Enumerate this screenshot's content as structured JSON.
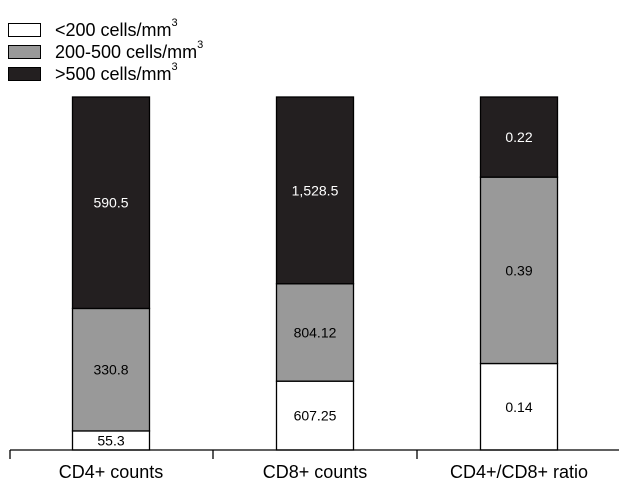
{
  "chart_data": {
    "type": "bar",
    "stacked": true,
    "normalized_to_equal_height": true,
    "categories": [
      "CD4+ counts",
      "CD8+ counts",
      "CD4+/CD8+ ratio"
    ],
    "series": [
      {
        "name": "<200 cells/mm",
        "name_superscript": "3",
        "color": "#ffffff",
        "labels": [
          "55.3",
          "607.25",
          "0.14"
        ],
        "proportions": [
          0.054,
          0.195,
          0.245
        ]
      },
      {
        "name": "200-500 cells/mm",
        "name_superscript": "3",
        "color": "#999999",
        "labels": [
          "330.8",
          "804.12",
          "0.39"
        ],
        "proportions": [
          0.347,
          0.276,
          0.528
        ]
      },
      {
        "name": ">500 cells/mm",
        "name_superscript": "3",
        "color": "#231f20",
        "labels": [
          "590.5",
          "1,528.5",
          "0.22"
        ],
        "proportions": [
          0.599,
          0.529,
          0.227
        ]
      }
    ],
    "legend_position": "top-left",
    "grid": false,
    "xlabel": "",
    "ylabel": ""
  }
}
